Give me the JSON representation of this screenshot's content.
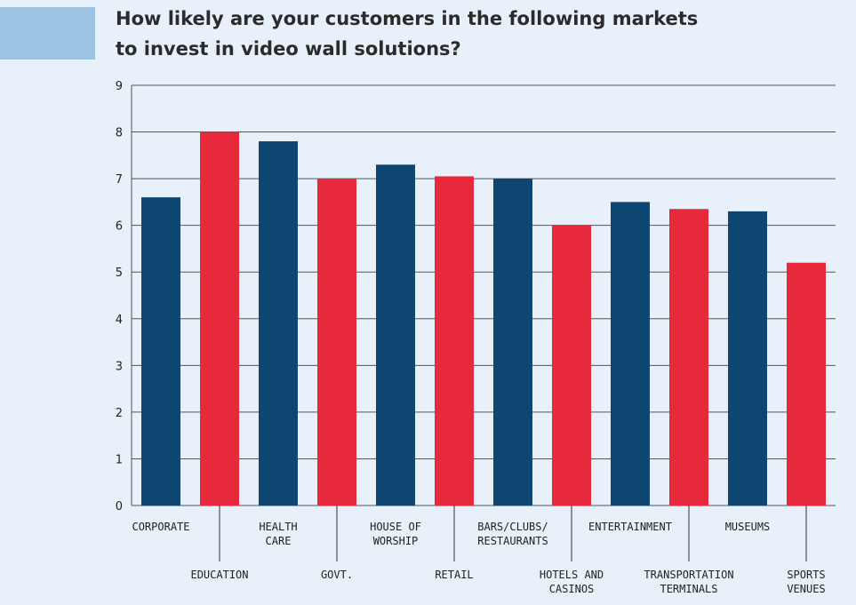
{
  "chart_data": {
    "type": "bar",
    "title_lines": [
      "How likely are your customers in the following markets",
      "to invest in video wall solutions?"
    ],
    "xlabel": "",
    "ylabel": "",
    "ylim": [
      0,
      9
    ],
    "yticks": [
      0,
      1,
      2,
      3,
      4,
      5,
      6,
      7,
      8,
      9
    ],
    "grid": true,
    "categories": [
      [
        "CORPORATE"
      ],
      [
        "EDUCATION"
      ],
      [
        "HEALTH",
        "CARE"
      ],
      [
        "GOVT."
      ],
      [
        "HOUSE OF",
        "WORSHIP"
      ],
      [
        "RETAIL"
      ],
      [
        "BARS/CLUBS/",
        "RESTAURANTS"
      ],
      [
        "HOTELS AND",
        "CASINOS"
      ],
      [
        "ENTERTAINMENT"
      ],
      [
        "TRANSPORTATION",
        "TERMINALS"
      ],
      [
        "MUSEUMS"
      ],
      [
        "SPORTS",
        "VENUES"
      ]
    ],
    "values": [
      6.6,
      8.0,
      7.8,
      7.0,
      7.3,
      7.05,
      7.0,
      6.0,
      6.5,
      6.35,
      6.3,
      5.2
    ],
    "colors": [
      "#0e4571",
      "#e8293c",
      "#0e4571",
      "#e8293c",
      "#0e4571",
      "#e8293c",
      "#0e4571",
      "#e8293c",
      "#0e4571",
      "#e8293c",
      "#0e4571",
      "#e8293c"
    ]
  }
}
